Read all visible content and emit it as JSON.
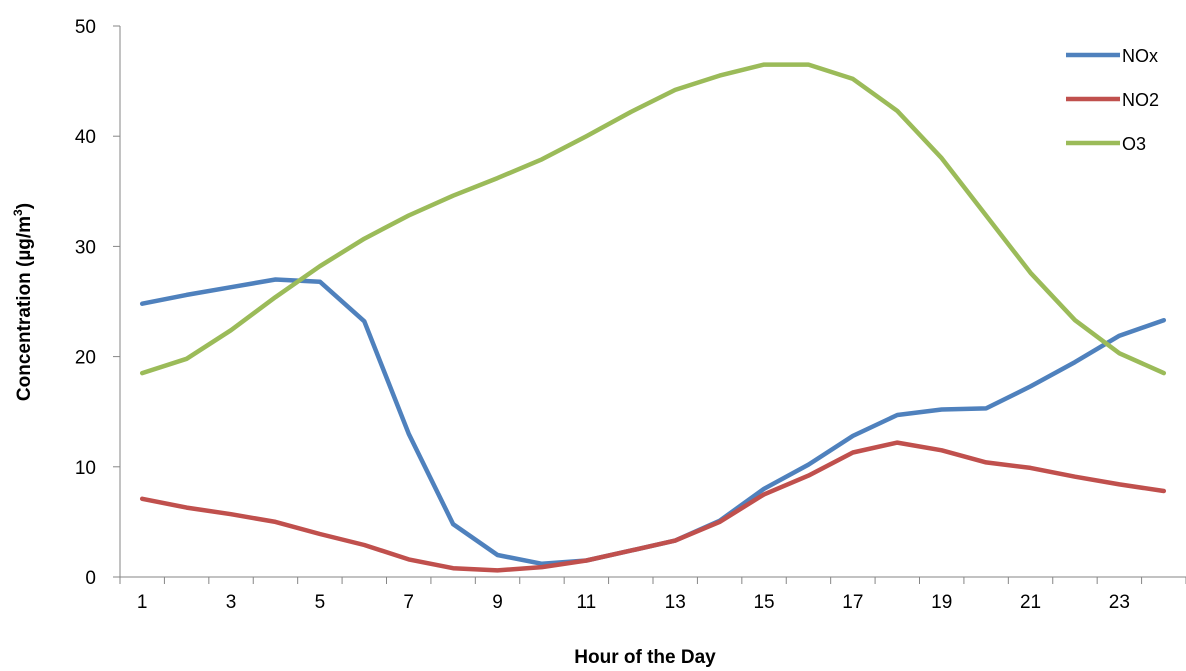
{
  "chart_data": {
    "type": "line",
    "title": "",
    "xlabel": "Hour of the Day",
    "ylabel_main": "Concentration (µg/m",
    "ylabel_sup": "3",
    "ylabel_close": ")",
    "ylim": [
      0,
      50
    ],
    "yticks": [
      0,
      10,
      20,
      30,
      40,
      50
    ],
    "x": [
      1,
      2,
      3,
      4,
      5,
      6,
      7,
      8,
      9,
      10,
      11,
      12,
      13,
      14,
      15,
      16,
      17,
      18,
      19,
      20,
      21,
      22,
      23,
      24
    ],
    "xtick_labels": [
      "1",
      "3",
      "5",
      "7",
      "9",
      "11",
      "13",
      "15",
      "17",
      "19",
      "21",
      "23"
    ],
    "grid": false,
    "legend_position": "top-right",
    "series": [
      {
        "name": "NOx",
        "color": "#4f81bd",
        "values": [
          24.8,
          25.6,
          26.3,
          27.0,
          26.8,
          23.2,
          13.0,
          4.8,
          2.0,
          1.2,
          1.5,
          2.4,
          3.3,
          5.1,
          8.0,
          10.2,
          12.8,
          14.7,
          15.2,
          15.3,
          17.3,
          19.5,
          21.9,
          23.3
        ]
      },
      {
        "name": "NO2",
        "color": "#c0504d",
        "values": [
          7.1,
          6.3,
          5.7,
          5.0,
          3.9,
          2.9,
          1.6,
          0.8,
          0.6,
          0.9,
          1.5,
          2.4,
          3.3,
          5.0,
          7.5,
          9.2,
          11.3,
          12.2,
          11.5,
          10.4,
          9.9,
          9.1,
          8.4,
          7.8
        ]
      },
      {
        "name": "O3",
        "color": "#9bbb59",
        "values": [
          18.5,
          19.8,
          22.4,
          25.4,
          28.2,
          30.7,
          32.8,
          34.6,
          36.2,
          37.9,
          40.0,
          42.2,
          44.2,
          45.5,
          46.5,
          46.5,
          45.2,
          42.3,
          38.0,
          32.8,
          27.6,
          23.3,
          20.3,
          18.5
        ]
      }
    ]
  }
}
